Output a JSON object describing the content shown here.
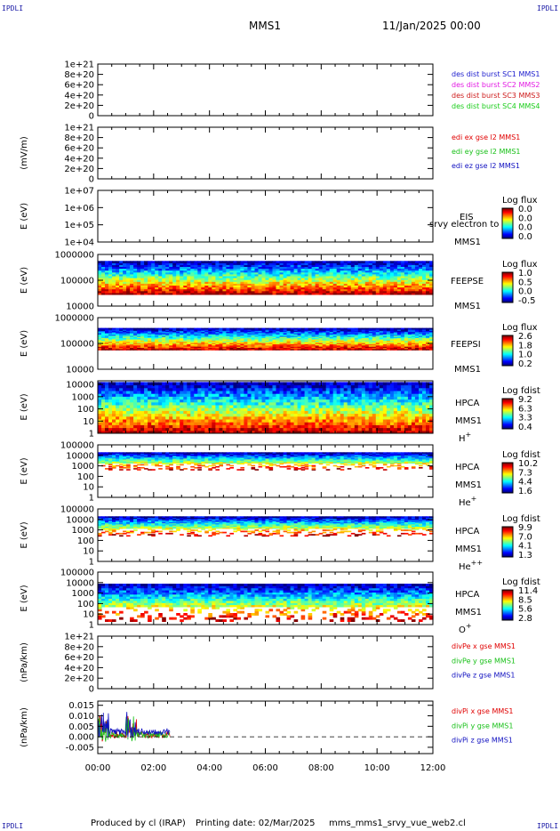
{
  "corner_tag": "IPDLI",
  "header": {
    "spacecraft": "MMS1",
    "date": "11/Jan/2025 00:00"
  },
  "footer": {
    "produced_by": "Produced by cl (IRAP)",
    "printing_date": "Printing date: 02/Mar/2025",
    "file": "mms_mms1_srvy_vue_web2.cl"
  },
  "colors": {
    "fgm_dist_1": "#1a1acd",
    "fgm_dist_2": "#e31ae3",
    "fgm_dist_3": "#cd1a1a",
    "fgm_dist_4": "#1acd1a",
    "red": "#e00000",
    "green": "#18c018",
    "blue": "#1010c0"
  },
  "chart_data": {
    "type": "multi-panel",
    "x_range": [
      0,
      12
    ],
    "x_unit": "hours",
    "x_ticks": [
      "00:00",
      "02:00",
      "04:00",
      "06:00",
      "08:00",
      "10:00",
      "12:00"
    ],
    "panels": [
      {
        "id": "p1",
        "kind": "line",
        "ylabel": "",
        "ylim": [
          0,
          1e+21
        ],
        "yticks": [
          "0",
          "2e+20",
          "4e+20",
          "6e+20",
          "8e+20",
          "1e+21"
        ],
        "yvals": [
          0,
          2e+20,
          4e+20,
          6e+20,
          8e+20,
          1e+21
        ],
        "dashed_zero": true,
        "legend": [
          {
            "text": "des dist burst SC1 MMS1",
            "color": "#1a1acd"
          },
          {
            "text": "des dist burst SC2 MMS2",
            "color": "#e31ae3"
          },
          {
            "text": "des dist burst SC3 MMS3",
            "color": "#cd1a1a"
          },
          {
            "text": "des dist burst SC4 MMS4",
            "color": "#1acd1a"
          }
        ]
      },
      {
        "id": "p2",
        "kind": "line",
        "ylabel": "(mV/m)",
        "ylim": [
          0,
          1e+21
        ],
        "yticks": [
          "0",
          "2e+20",
          "4e+20",
          "6e+20",
          "8e+20",
          "1e+21"
        ],
        "yvals": [
          0,
          2e+20,
          4e+20,
          6e+20,
          8e+20,
          1e+21
        ],
        "dashed_zero": true,
        "legend": [
          {
            "text": "edi ex gse l2 MMS1",
            "color": "#e00000"
          },
          {
            "text": "edi ey gse l2 MMS1",
            "color": "#18c018"
          },
          {
            "text": "edi ez gse l2 MMS1",
            "color": "#1010c0"
          }
        ]
      },
      {
        "id": "p3",
        "kind": "spectro",
        "ylabel": "E (eV)",
        "log": true,
        "ylim": [
          10000.0,
          10000000.0
        ],
        "yticks": [
          "1e+04",
          "1e+05",
          "1e+06",
          "1e+07"
        ],
        "yvals": [
          10000.0,
          100000.0,
          1000000.0,
          10000000.0
        ],
        "instrument": "EIS",
        "sc": "MMS1",
        "species": "",
        "overlay_text": "srvy electron to",
        "cb_title": "Log flux",
        "cb_ticks": [
          "0.0",
          "0.0",
          "0.0",
          "0.0"
        ],
        "data_until": 0
      },
      {
        "id": "p4",
        "kind": "spectro",
        "ylabel": "E (eV)",
        "log": true,
        "ylim": [
          10000.0,
          1000000.0
        ],
        "yticks": [
          "10000",
          "100000",
          "1000000"
        ],
        "yvals": [
          10000.0,
          100000.0,
          1000000.0
        ],
        "instrument": "FEEPSE",
        "sc": "MMS1",
        "species": "",
        "cb_title": "Log flux",
        "cb_ticks": [
          "1.0",
          "0.5",
          "0.0",
          "-0.5"
        ],
        "data_until": 12,
        "band_logE": [
          4.45,
          5.75
        ]
      },
      {
        "id": "p5",
        "kind": "spectro",
        "ylabel": "E (eV)",
        "log": true,
        "ylim": [
          10000.0,
          1000000.0
        ],
        "yticks": [
          "10000",
          "100000",
          "1000000"
        ],
        "yvals": [
          10000.0,
          100000.0,
          1000000.0
        ],
        "instrument": "FEEPSI",
        "sc": "MMS1",
        "species": "",
        "cb_title": "Log flux",
        "cb_ticks": [
          "2.6",
          "1.8",
          "1.0",
          "0.2"
        ],
        "data_until": 12,
        "band_logE": [
          4.75,
          5.6
        ]
      },
      {
        "id": "p6",
        "kind": "spectro",
        "ylabel": "E (eV)",
        "log": true,
        "ylim": [
          1,
          20000.0
        ],
        "yticks": [
          "1",
          "10",
          "100",
          "1000",
          "10000"
        ],
        "yvals": [
          1,
          10,
          100,
          1000,
          10000
        ],
        "instrument": "HPCA",
        "sc": "MMS1",
        "species": "H",
        "species_sup": "+",
        "cb_title": "Log fdist",
        "cb_ticks": [
          "9.2",
          "6.3",
          "3.3",
          "0.4"
        ],
        "data_until": 12,
        "band_logE": [
          0,
          4.2
        ]
      },
      {
        "id": "p7",
        "kind": "spectro",
        "ylabel": "E (eV)",
        "log": true,
        "ylim": [
          1,
          100000.0
        ],
        "yticks": [
          "1",
          "10",
          "100",
          "1000",
          "10000",
          "100000"
        ],
        "yvals": [
          1,
          10,
          100,
          1000,
          10000,
          100000
        ],
        "instrument": "HPCA",
        "sc": "MMS1",
        "species": "He",
        "species_sup": "+",
        "cb_title": "Log fdist",
        "cb_ticks": [
          "10.2",
          "7.3",
          "4.4",
          "1.6"
        ],
        "data_until": 12,
        "band_logE": [
          2.6,
          4.3
        ]
      },
      {
        "id": "p8",
        "kind": "spectro",
        "ylabel": "E (eV)",
        "log": true,
        "ylim": [
          1,
          100000.0
        ],
        "yticks": [
          "1",
          "10",
          "100",
          "1000",
          "10000",
          "100000"
        ],
        "yvals": [
          1,
          10,
          100,
          1000,
          10000,
          100000
        ],
        "instrument": "HPCA",
        "sc": "MMS1",
        "species": "He",
        "species_sup": "++",
        "cb_title": "Log fdist",
        "cb_ticks": [
          "9.9",
          "7.0",
          "4.1",
          "1.3"
        ],
        "data_until": 12,
        "band_logE": [
          2.4,
          4.3
        ]
      },
      {
        "id": "p9",
        "kind": "spectro",
        "ylabel": "E (eV)",
        "log": true,
        "ylim": [
          1,
          100000.0
        ],
        "yticks": [
          "1",
          "10",
          "100",
          "1000",
          "10000",
          "100000"
        ],
        "yvals": [
          1,
          10,
          100,
          1000,
          10000,
          100000
        ],
        "instrument": "HPCA",
        "sc": "MMS1",
        "species": "O",
        "species_sup": "+",
        "cb_title": "Log fdist",
        "cb_ticks": [
          "11.4",
          "8.5",
          "5.6",
          "2.8"
        ],
        "data_until": 12,
        "band_logE": [
          0.3,
          3.9
        ]
      },
      {
        "id": "p10",
        "kind": "line",
        "ylabel": "(nPa/km)",
        "ylim": [
          0,
          1e+21
        ],
        "yticks": [
          "0",
          "2e+20",
          "4e+20",
          "6e+20",
          "8e+20",
          "1e+21"
        ],
        "yvals": [
          0,
          2e+20,
          4e+20,
          6e+20,
          8e+20,
          1e+21
        ],
        "dashed_zero": true,
        "legend": [
          {
            "text": "divPe x gse MMS1",
            "color": "#e00000"
          },
          {
            "text": "divPe y gse MMS1",
            "color": "#18c018"
          },
          {
            "text": "divPe z gse MMS1",
            "color": "#1010c0"
          }
        ]
      },
      {
        "id": "p11",
        "kind": "line",
        "ylabel": "(nPa/km)",
        "ylim": [
          -0.008,
          0.017
        ],
        "yticks": [
          "-0.005",
          "0.000",
          "0.005",
          "0.010",
          "0.015"
        ],
        "yvals": [
          -0.005,
          0,
          0.005,
          0.01,
          0.015
        ],
        "dashed_zero": true,
        "data_until": 2.6,
        "legend": [
          {
            "text": "divPi x gse MMS1",
            "color": "#e00000"
          },
          {
            "text": "divPi y gse MMS1",
            "color": "#18c018"
          },
          {
            "text": "divPi z gse MMS1",
            "color": "#1010c0"
          }
        ]
      }
    ]
  }
}
